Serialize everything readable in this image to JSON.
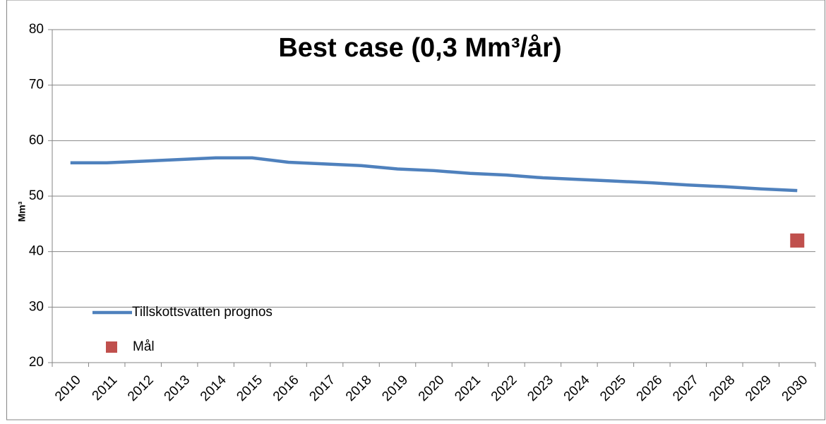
{
  "chart_data": {
    "type": "line",
    "title": "Best case (0,3 Mm³/år)",
    "y_label": "Mm³",
    "categories": [
      "2010",
      "2011",
      "2012",
      "2013",
      "2014",
      "2015",
      "2016",
      "2017",
      "2018",
      "2019",
      "2020",
      "2021",
      "2022",
      "2023",
      "2024",
      "2025",
      "2026",
      "2027",
      "2028",
      "2029",
      "2030"
    ],
    "series": [
      {
        "name": "Tillskottsvatten prognos",
        "color": "#4f81bd",
        "mark": "line",
        "values": [
          56,
          56,
          56.3,
          56.6,
          56.9,
          56.9,
          56.1,
          55.8,
          55.5,
          54.9,
          54.6,
          54.1,
          53.8,
          53.3,
          53.0,
          52.7,
          52.4,
          52.0,
          51.7,
          51.3,
          51.0
        ]
      },
      {
        "name": "Mål",
        "color": "#c0504d",
        "mark": "square",
        "values": [
          null,
          null,
          null,
          null,
          null,
          null,
          null,
          null,
          null,
          null,
          null,
          null,
          null,
          null,
          null,
          null,
          null,
          null,
          null,
          null,
          42
        ]
      }
    ],
    "ylim": [
      20,
      80
    ],
    "yticks": [
      20,
      30,
      40,
      50,
      60,
      70,
      80
    ],
    "grid": true,
    "legend": "lower left"
  }
}
